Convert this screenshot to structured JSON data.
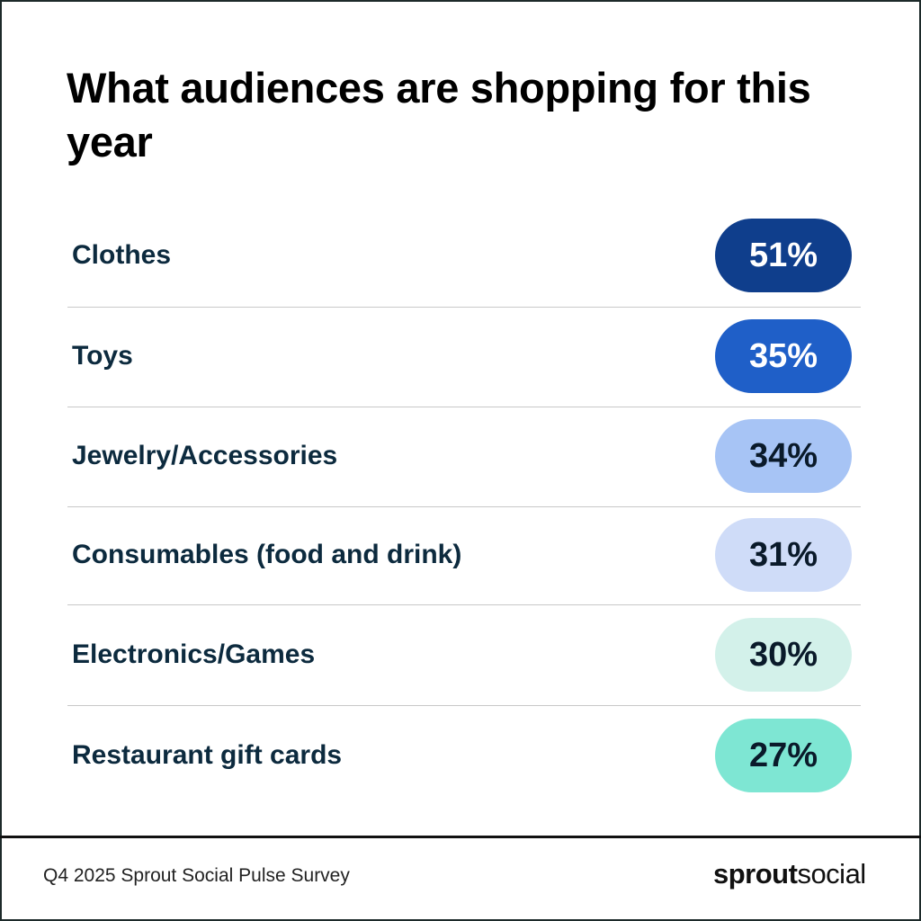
{
  "chart_data": {
    "type": "table",
    "title": "What audiences are shopping for this year",
    "categories": [
      "Clothes",
      "Toys",
      "Jewelry/Accessories",
      "Consumables (food and drink)",
      "Electronics/Games",
      "Restaurant gift cards"
    ],
    "values": [
      51,
      35,
      34,
      31,
      30,
      27
    ],
    "value_labels": [
      "51%",
      "35%",
      "34%",
      "31%",
      "30%",
      "27%"
    ],
    "colors": [
      "#0f3e8c",
      "#1f5fc8",
      "#a7c4f5",
      "#cfdcf8",
      "#d3f1ea",
      "#7ee6d3"
    ],
    "text_colors": [
      "#ffffff",
      "#ffffff",
      "#0a1a2a",
      "#0a1a2a",
      "#0a1a2a",
      "#0a1a2a"
    ]
  },
  "footer": {
    "source": "Q4 2025 Sprout Social Pulse Survey",
    "logo_bold": "sprout",
    "logo_light": "social"
  }
}
